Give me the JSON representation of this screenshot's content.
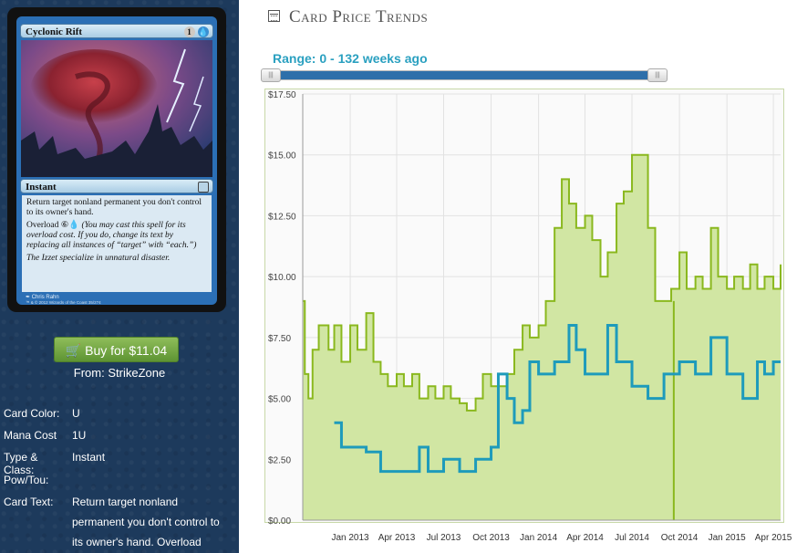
{
  "card": {
    "name": "Cyclonic Rift",
    "mana_symbols": [
      "1",
      "U"
    ],
    "type_line": "Instant",
    "rules_text": "Return target nonland permanent you don't control to its owner's hand.",
    "overload_label": "Overload",
    "overload_cost": [
      "6",
      "U"
    ],
    "overload_reminder": "(You may cast this spell for its overload cost. If you do, change its text by replacing all instances of “target” with “each.”)",
    "flavor_text": "The Izzet specialize in unnatural disaster.",
    "artist": "Chris Rahn",
    "copyright": "™ & © 2012 Wizards of the Coast 35/274"
  },
  "buy": {
    "label": "Buy for $11.04",
    "icon": "cart-icon"
  },
  "from": "From: StrikeZone",
  "info": {
    "color_label": "Card Color:",
    "color_value": "U",
    "mana_label": "Mana Cost",
    "mana_value": "1U",
    "type_label": "Type & Class:",
    "type_value": "Instant",
    "pow_label": "Pow/Tou:",
    "pow_value": "",
    "text_label": "Card Text:",
    "text_value": "Return target nonland permanent you don't control to its owner's hand. Overload"
  },
  "header": {
    "title": "Card Price Trends",
    "icon": "calendar-icon"
  },
  "range": {
    "label": "Range: 0 - 132 weeks ago",
    "min_weeks": 0,
    "max_weeks": 132
  },
  "colors": {
    "sidebar": "#1d3a5c",
    "buy_button": "#6fa53d",
    "accent": "#2aa0c0",
    "slider": "#2e6faa",
    "high_line": "#8ab81e",
    "high_fill": "#d1e6a3",
    "low_line": "#1e9bbb"
  },
  "chart_data": {
    "type": "line",
    "title": "",
    "xlabel": "",
    "ylabel": "",
    "x_ticks": [
      "Jan 2013",
      "Apr 2013",
      "Jul 2013",
      "Oct 2013",
      "Jan 2014",
      "Apr 2014",
      "Jul 2014",
      "Oct 2014",
      "Jan 2015",
      "Apr 2015"
    ],
    "y_ticks": [
      "$0.00",
      "$2.50",
      "$5.00",
      "$7.50",
      "$10.00",
      "$12.50",
      "$15.00",
      "$17.50"
    ],
    "xlim": [
      "2012-10-01",
      "2015-04-15"
    ],
    "ylim": [
      0,
      17.5
    ],
    "grid": true,
    "series": [
      {
        "style": "area",
        "points": [
          [
            "2012-10-01",
            9.0
          ],
          [
            "2012-10-05",
            6.0
          ],
          [
            "2012-10-12",
            5.0
          ],
          [
            "2012-10-20",
            7.0
          ],
          [
            "2012-11-01",
            8.0
          ],
          [
            "2012-11-20",
            7.0
          ],
          [
            "2012-12-01",
            8.0
          ],
          [
            "2012-12-15",
            6.5
          ],
          [
            "2013-01-01",
            8.0
          ],
          [
            "2013-01-15",
            7.0
          ],
          [
            "2013-02-01",
            8.5
          ],
          [
            "2013-02-15",
            6.5
          ],
          [
            "2013-03-01",
            6.0
          ],
          [
            "2013-03-15",
            5.5
          ],
          [
            "2013-04-01",
            6.0
          ],
          [
            "2013-04-15",
            5.5
          ],
          [
            "2013-05-01",
            6.0
          ],
          [
            "2013-05-15",
            5.0
          ],
          [
            "2013-06-01",
            5.5
          ],
          [
            "2013-06-15",
            5.0
          ],
          [
            "2013-07-01",
            5.5
          ],
          [
            "2013-07-15",
            5.0
          ],
          [
            "2013-08-01",
            4.8
          ],
          [
            "2013-08-15",
            4.5
          ],
          [
            "2013-09-01",
            5.0
          ],
          [
            "2013-09-15",
            6.0
          ],
          [
            "2013-10-01",
            5.5
          ],
          [
            "2013-10-15",
            5.5
          ],
          [
            "2013-11-01",
            6.0
          ],
          [
            "2013-11-15",
            7.0
          ],
          [
            "2013-12-01",
            8.0
          ],
          [
            "2013-12-15",
            7.5
          ],
          [
            "2014-01-01",
            8.0
          ],
          [
            "2014-01-15",
            9.0
          ],
          [
            "2014-02-01",
            12.0
          ],
          [
            "2014-02-15",
            14.0
          ],
          [
            "2014-03-01",
            13.0
          ],
          [
            "2014-03-15",
            12.0
          ],
          [
            "2014-04-01",
            12.5
          ],
          [
            "2014-04-15",
            11.5
          ],
          [
            "2014-05-01",
            10.0
          ],
          [
            "2014-05-15",
            11.0
          ],
          [
            "2014-06-01",
            13.0
          ],
          [
            "2014-06-15",
            13.5
          ],
          [
            "2014-07-01",
            15.0
          ],
          [
            "2014-07-15",
            15.0
          ],
          [
            "2014-08-01",
            12.0
          ],
          [
            "2014-08-15",
            9.0
          ],
          [
            "2014-09-01",
            9.0
          ],
          [
            "2014-09-15",
            9.5
          ],
          [
            "2014-10-01",
            11.0
          ],
          [
            "2014-10-15",
            9.5
          ],
          [
            "2014-11-01",
            10.0
          ],
          [
            "2014-11-15",
            9.5
          ],
          [
            "2014-12-01",
            12.0
          ],
          [
            "2014-12-15",
            10.0
          ],
          [
            "2015-01-01",
            9.5
          ],
          [
            "2015-01-15",
            10.0
          ],
          [
            "2015-02-01",
            9.5
          ],
          [
            "2015-02-15",
            10.5
          ],
          [
            "2015-03-01",
            9.5
          ],
          [
            "2015-03-15",
            10.0
          ],
          [
            "2015-04-01",
            9.5
          ],
          [
            "2015-04-15",
            10.5
          ]
        ]
      },
      {
        "style": "line",
        "points": [
          [
            "2012-12-01",
            4.0
          ],
          [
            "2012-12-15",
            3.0
          ],
          [
            "2013-01-01",
            3.0
          ],
          [
            "2013-02-01",
            2.8
          ],
          [
            "2013-03-01",
            2.0
          ],
          [
            "2013-04-01",
            2.0
          ],
          [
            "2013-05-01",
            2.0
          ],
          [
            "2013-05-15",
            3.0
          ],
          [
            "2013-06-01",
            2.0
          ],
          [
            "2013-07-01",
            2.5
          ],
          [
            "2013-08-01",
            2.0
          ],
          [
            "2013-09-01",
            2.5
          ],
          [
            "2013-10-01",
            3.0
          ],
          [
            "2013-10-15",
            6.0
          ],
          [
            "2013-11-01",
            5.0
          ],
          [
            "2013-11-15",
            4.0
          ],
          [
            "2013-12-01",
            4.5
          ],
          [
            "2013-12-15",
            6.5
          ],
          [
            "2014-01-01",
            6.0
          ],
          [
            "2014-02-01",
            6.5
          ],
          [
            "2014-03-01",
            8.0
          ],
          [
            "2014-03-15",
            7.0
          ],
          [
            "2014-04-01",
            6.0
          ],
          [
            "2014-05-01",
            6.0
          ],
          [
            "2014-05-15",
            8.0
          ],
          [
            "2014-06-01",
            6.5
          ],
          [
            "2014-07-01",
            5.5
          ],
          [
            "2014-08-01",
            5.0
          ],
          [
            "2014-09-01",
            6.0
          ],
          [
            "2014-10-01",
            6.5
          ],
          [
            "2014-11-01",
            6.0
          ],
          [
            "2014-12-01",
            7.5
          ],
          [
            "2015-01-01",
            6.0
          ],
          [
            "2015-02-01",
            5.0
          ],
          [
            "2015-03-01",
            6.5
          ],
          [
            "2015-03-15",
            6.0
          ],
          [
            "2015-04-01",
            6.5
          ],
          [
            "2015-04-15",
            6.5
          ]
        ]
      }
    ]
  }
}
